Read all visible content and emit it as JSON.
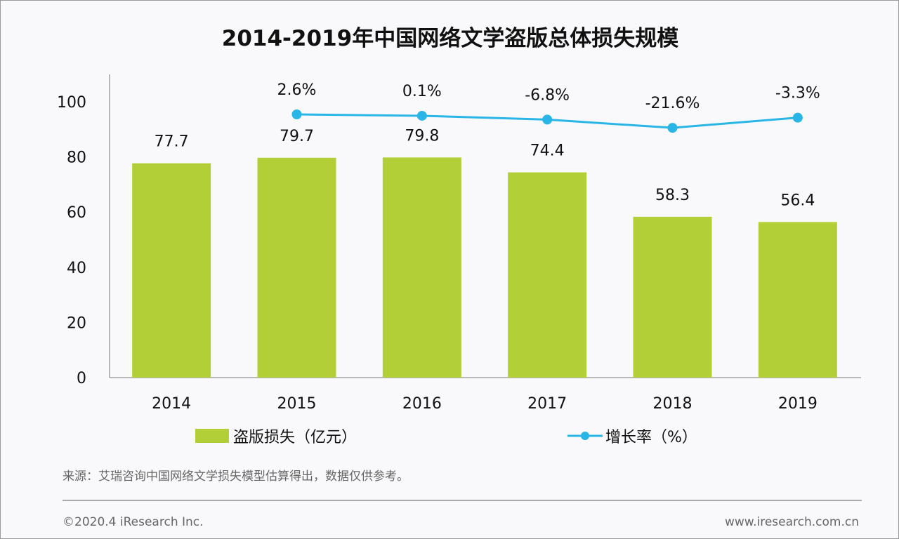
{
  "chart_data": {
    "type": "bar+line",
    "title": "2014-2019年中国网络文学盗版总体损失规模",
    "categories": [
      "2014",
      "2015",
      "2016",
      "2017",
      "2018",
      "2019"
    ],
    "series": [
      {
        "name": "盗版损失（亿元）",
        "type": "bar",
        "color": "#b2cf37",
        "values": [
          77.7,
          79.7,
          79.8,
          74.4,
          58.3,
          56.4
        ],
        "labels": [
          "77.7",
          "79.7",
          "79.8",
          "74.4",
          "58.3",
          "56.4"
        ]
      },
      {
        "name": "增长率（%）",
        "type": "line",
        "color": "#29b6e6",
        "values": [
          null,
          2.6,
          0.1,
          -6.8,
          -21.6,
          -3.3
        ],
        "labels": [
          "",
          "2.6%",
          "0.1%",
          "-6.8%",
          "-21.6%",
          "-3.3%"
        ]
      }
    ],
    "yticks": [
      "0",
      "20",
      "40",
      "60",
      "80",
      "100"
    ],
    "ylim": [
      0,
      100
    ],
    "grid": false,
    "legend": "bottom"
  },
  "footer": {
    "source": "来源：艾瑞咨询中国网络文学损失模型估算得出，数据仅供参考。",
    "copyright": "©2020.4 iResearch Inc.",
    "website": "www.iresearch.com.cn"
  }
}
